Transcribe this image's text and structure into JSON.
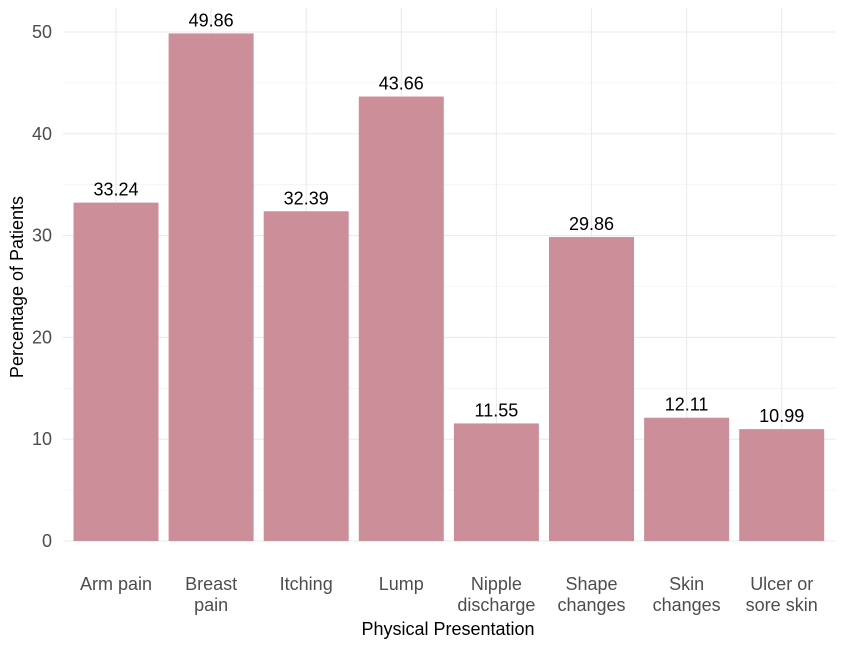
{
  "chart_data": {
    "type": "bar",
    "categories": [
      [
        "Arm pain"
      ],
      [
        "Breast",
        "pain"
      ],
      [
        "Itching"
      ],
      [
        "Lump"
      ],
      [
        "Nipple",
        "discharge"
      ],
      [
        "Shape",
        "changes"
      ],
      [
        "Skin",
        "changes"
      ],
      [
        "Ulcer or",
        "sore skin"
      ]
    ],
    "values": [
      33.24,
      49.86,
      32.39,
      43.66,
      11.55,
      29.86,
      12.11,
      10.99
    ],
    "data_labels": [
      "33.24",
      "49.86",
      "32.39",
      "43.66",
      "11.55",
      "29.86",
      "12.11",
      "10.99"
    ],
    "xlabel": "Physical Presentation",
    "ylabel": "Percentage of Patients",
    "ylim": [
      0,
      50
    ],
    "yticks": [
      0,
      10,
      20,
      30,
      40,
      50
    ],
    "bar_color": "#cc8f9a",
    "grid": true,
    "legend": "none"
  }
}
